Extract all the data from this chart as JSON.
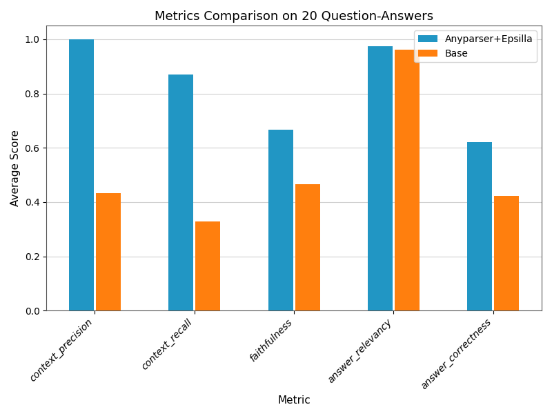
{
  "title": "Metrics Comparison on 20 Question-Answers",
  "xlabel": "Metric",
  "ylabel": "Average Score",
  "categories": [
    "context_precision",
    "context_recall",
    "faithfulness",
    "answer_relevancy",
    "answer_correctness"
  ],
  "series": [
    {
      "label": "Anyparser+Epsilla",
      "color": "#2196c4",
      "values": [
        1.0,
        0.87,
        0.667,
        0.975,
        0.62
      ]
    },
    {
      "label": "Base",
      "color": "#ff7f0e",
      "values": [
        0.433,
        0.328,
        0.467,
        0.961,
        0.423
      ]
    }
  ],
  "ylim": [
    0.0,
    1.05
  ],
  "yticks": [
    0.0,
    0.2,
    0.4,
    0.6,
    0.8,
    1.0
  ],
  "bar_width": 0.25,
  "bar_gap": 0.02,
  "grid": true,
  "legend_loc": "upper right",
  "figsize": [
    8.0,
    6.03
  ],
  "dpi": 100,
  "background_color": "#ffffff",
  "title_fontsize": 13,
  "axis_label_fontsize": 11,
  "tick_fontsize": 10,
  "legend_fontsize": 10,
  "xtick_rotation": 45
}
